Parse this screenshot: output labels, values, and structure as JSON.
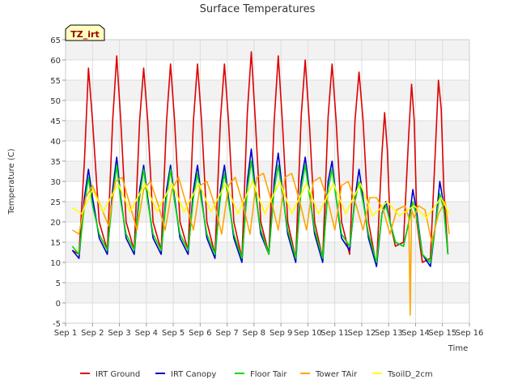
{
  "chart_data": {
    "type": "line",
    "title": "Surface Temperatures",
    "site_badge": "TZ_irt",
    "xlabel": "Time",
    "ylabel": "Temperature (C)",
    "xlim": [
      1,
      16
    ],
    "ylim": [
      -5,
      65
    ],
    "x_ticks": [
      1,
      2,
      3,
      4,
      5,
      6,
      7,
      8,
      9,
      10,
      11,
      12,
      13,
      14,
      15,
      16
    ],
    "x_tick_labels": [
      "Sep 1",
      "Sep 2",
      "Sep 3",
      "Sep 4",
      "Sep 5",
      "Sep 6",
      "Sep 7",
      "Sep 8",
      "Sep 9",
      "Sep 10",
      "Sep 11",
      "Sep 12",
      "Sep 13",
      "Sep 14",
      "Sep 15",
      "Sep 16"
    ],
    "y_ticks": [
      -5,
      0,
      5,
      10,
      15,
      20,
      25,
      30,
      35,
      40,
      45,
      50,
      55,
      60,
      65
    ],
    "y_tick_labels": [
      "-5",
      "0",
      "5",
      "10",
      "15",
      "20",
      "25",
      "30",
      "35",
      "40",
      "45",
      "50",
      "55",
      "60",
      "65"
    ],
    "grid": true,
    "legend_position": "bottom",
    "series": [
      {
        "name": "IRT Ground",
        "color": "#dd0000",
        "x": [
          1.25,
          1.5,
          1.7,
          1.85,
          2.0,
          2.25,
          2.55,
          2.75,
          2.9,
          3.05,
          3.25,
          3.55,
          3.75,
          3.9,
          4.05,
          4.25,
          4.55,
          4.75,
          4.9,
          5.05,
          5.25,
          5.55,
          5.75,
          5.9,
          6.05,
          6.25,
          6.55,
          6.75,
          6.9,
          7.05,
          7.25,
          7.55,
          7.75,
          7.9,
          8.05,
          8.25,
          8.55,
          8.75,
          8.9,
          9.05,
          9.25,
          9.55,
          9.75,
          9.9,
          10.05,
          10.25,
          10.55,
          10.75,
          10.9,
          11.05,
          11.25,
          11.55,
          11.75,
          11.9,
          12.05,
          12.25,
          12.55,
          12.75,
          12.85,
          12.95,
          13.05,
          13.25,
          13.55,
          13.75,
          13.85,
          13.95,
          14.05,
          14.25,
          14.55,
          14.75,
          14.85,
          14.95,
          15.05,
          15.2
        ],
        "y": [
          13,
          12,
          35,
          58,
          45,
          20,
          13,
          45,
          61,
          45,
          20,
          13,
          45,
          58,
          45,
          20,
          13,
          45,
          59,
          45,
          20,
          13,
          45,
          59,
          45,
          20,
          12,
          45,
          59,
          45,
          20,
          11,
          47,
          62,
          45,
          20,
          12,
          45,
          61,
          45,
          20,
          11,
          46,
          60,
          45,
          20,
          11,
          46,
          59,
          45,
          20,
          12,
          45,
          57,
          45,
          20,
          9,
          37,
          47,
          38,
          20,
          14,
          15,
          42,
          54,
          45,
          20,
          10,
          11,
          40,
          55,
          48,
          28,
          12
        ]
      },
      {
        "name": "IRT Canopy",
        "color": "#0000cc",
        "x": [
          1.25,
          1.5,
          1.7,
          1.85,
          2.0,
          2.25,
          2.55,
          2.75,
          2.9,
          3.05,
          3.25,
          3.55,
          3.75,
          3.9,
          4.05,
          4.25,
          4.55,
          4.75,
          4.9,
          5.05,
          5.25,
          5.55,
          5.75,
          5.9,
          6.05,
          6.25,
          6.55,
          6.75,
          6.9,
          7.05,
          7.25,
          7.55,
          7.75,
          7.9,
          8.05,
          8.25,
          8.55,
          8.75,
          8.9,
          9.05,
          9.25,
          9.55,
          9.75,
          9.9,
          10.05,
          10.25,
          10.55,
          10.75,
          10.9,
          11.05,
          11.25,
          11.55,
          11.75,
          11.9,
          12.05,
          12.25,
          12.55,
          12.75,
          12.9,
          13.05,
          13.25,
          13.55,
          13.75,
          13.9,
          14.05,
          14.25,
          14.55,
          14.75,
          14.9,
          15.05,
          15.2
        ],
        "y": [
          13,
          11,
          26,
          33,
          26,
          16,
          12,
          28,
          36,
          26,
          16,
          12,
          28,
          34,
          26,
          16,
          12,
          28,
          34,
          26,
          16,
          12,
          28,
          34,
          26,
          16,
          11,
          28,
          34,
          26,
          16,
          10,
          30,
          38,
          28,
          17,
          12,
          30,
          37,
          28,
          17,
          10,
          30,
          36,
          28,
          17,
          10,
          30,
          35,
          26,
          16,
          13,
          26,
          33,
          26,
          16,
          9,
          22,
          25,
          20,
          15,
          14,
          20,
          28,
          22,
          12,
          9,
          20,
          30,
          24,
          12
        ]
      },
      {
        "name": "Floor Tair",
        "color": "#00dd00",
        "x": [
          1.25,
          1.5,
          1.7,
          1.85,
          2.0,
          2.25,
          2.55,
          2.75,
          2.9,
          3.05,
          3.25,
          3.55,
          3.75,
          3.9,
          4.05,
          4.25,
          4.55,
          4.75,
          4.9,
          5.05,
          5.25,
          5.55,
          5.75,
          5.9,
          6.05,
          6.25,
          6.55,
          6.75,
          6.9,
          7.05,
          7.25,
          7.55,
          7.75,
          7.9,
          8.05,
          8.25,
          8.55,
          8.75,
          8.9,
          9.05,
          9.25,
          9.55,
          9.75,
          9.9,
          10.05,
          10.25,
          10.55,
          10.75,
          10.9,
          11.05,
          11.25,
          11.55,
          11.75,
          11.9,
          12.05,
          12.25,
          12.55,
          12.75,
          12.9,
          13.05,
          13.25,
          13.55,
          13.75,
          13.9,
          14.05,
          14.25,
          14.55,
          14.75,
          14.9,
          15.05,
          15.2
        ],
        "y": [
          14,
          12,
          24,
          31,
          24,
          17,
          13,
          26,
          34,
          25,
          17,
          13,
          26,
          33,
          25,
          17,
          13,
          26,
          33,
          25,
          17,
          13,
          26,
          32,
          25,
          17,
          12,
          26,
          32,
          25,
          17,
          11,
          28,
          35,
          27,
          18,
          12,
          28,
          34,
          27,
          18,
          11,
          28,
          34,
          27,
          18,
          11,
          28,
          33,
          26,
          17,
          14,
          25,
          30,
          25,
          17,
          10,
          22,
          24,
          20,
          15,
          14,
          20,
          25,
          21,
          12,
          10,
          20,
          27,
          23,
          12
        ]
      },
      {
        "name": "Tower TAir",
        "color": "#ffa500",
        "x": [
          1.25,
          1.5,
          1.75,
          2.0,
          2.3,
          2.6,
          2.85,
          3.1,
          3.4,
          3.65,
          3.9,
          4.15,
          4.45,
          4.7,
          4.95,
          5.2,
          5.5,
          5.75,
          6.0,
          6.25,
          6.55,
          6.8,
          7.05,
          7.3,
          7.6,
          7.85,
          8.1,
          8.35,
          8.65,
          8.9,
          9.15,
          9.4,
          9.7,
          9.95,
          10.2,
          10.45,
          10.75,
          11.0,
          11.25,
          11.5,
          11.8,
          12.05,
          12.3,
          12.55,
          12.8,
          13.05,
          13.3,
          13.6,
          13.75,
          13.8,
          13.85,
          13.95,
          14.1,
          14.35,
          14.6,
          14.85,
          15.1,
          15.25
        ],
        "y": [
          18,
          17,
          26,
          29,
          24,
          19,
          30,
          31,
          24,
          18,
          28,
          30,
          24,
          18,
          28,
          31,
          24,
          18,
          29,
          30,
          24,
          17,
          29,
          31,
          24,
          17,
          31,
          32,
          25,
          18,
          31,
          32,
          25,
          18,
          30,
          31,
          25,
          18,
          29,
          30,
          24,
          18,
          26,
          26,
          23,
          17,
          23,
          24,
          21,
          -3,
          23,
          21,
          24,
          23,
          15,
          22,
          25,
          17
        ]
      },
      {
        "name": "TsoilD_2cm",
        "color": "#ffff00",
        "x": [
          1.25,
          1.6,
          2.0,
          2.4,
          2.95,
          3.4,
          3.95,
          4.4,
          4.95,
          5.4,
          5.95,
          6.4,
          6.95,
          7.4,
          7.95,
          8.4,
          8.95,
          9.4,
          9.95,
          10.4,
          10.95,
          11.4,
          11.95,
          12.4,
          12.95,
          13.4,
          13.95,
          14.4,
          14.95,
          15.25
        ],
        "y": [
          23.5,
          22,
          28,
          22.5,
          29.5,
          22.5,
          29.5,
          22.5,
          29.5,
          22.5,
          29.5,
          22.5,
          29.5,
          22,
          30,
          22,
          30,
          22,
          29.5,
          22,
          29.5,
          22,
          29.5,
          21.5,
          25,
          21.5,
          24,
          21,
          26,
          22
        ]
      }
    ]
  }
}
